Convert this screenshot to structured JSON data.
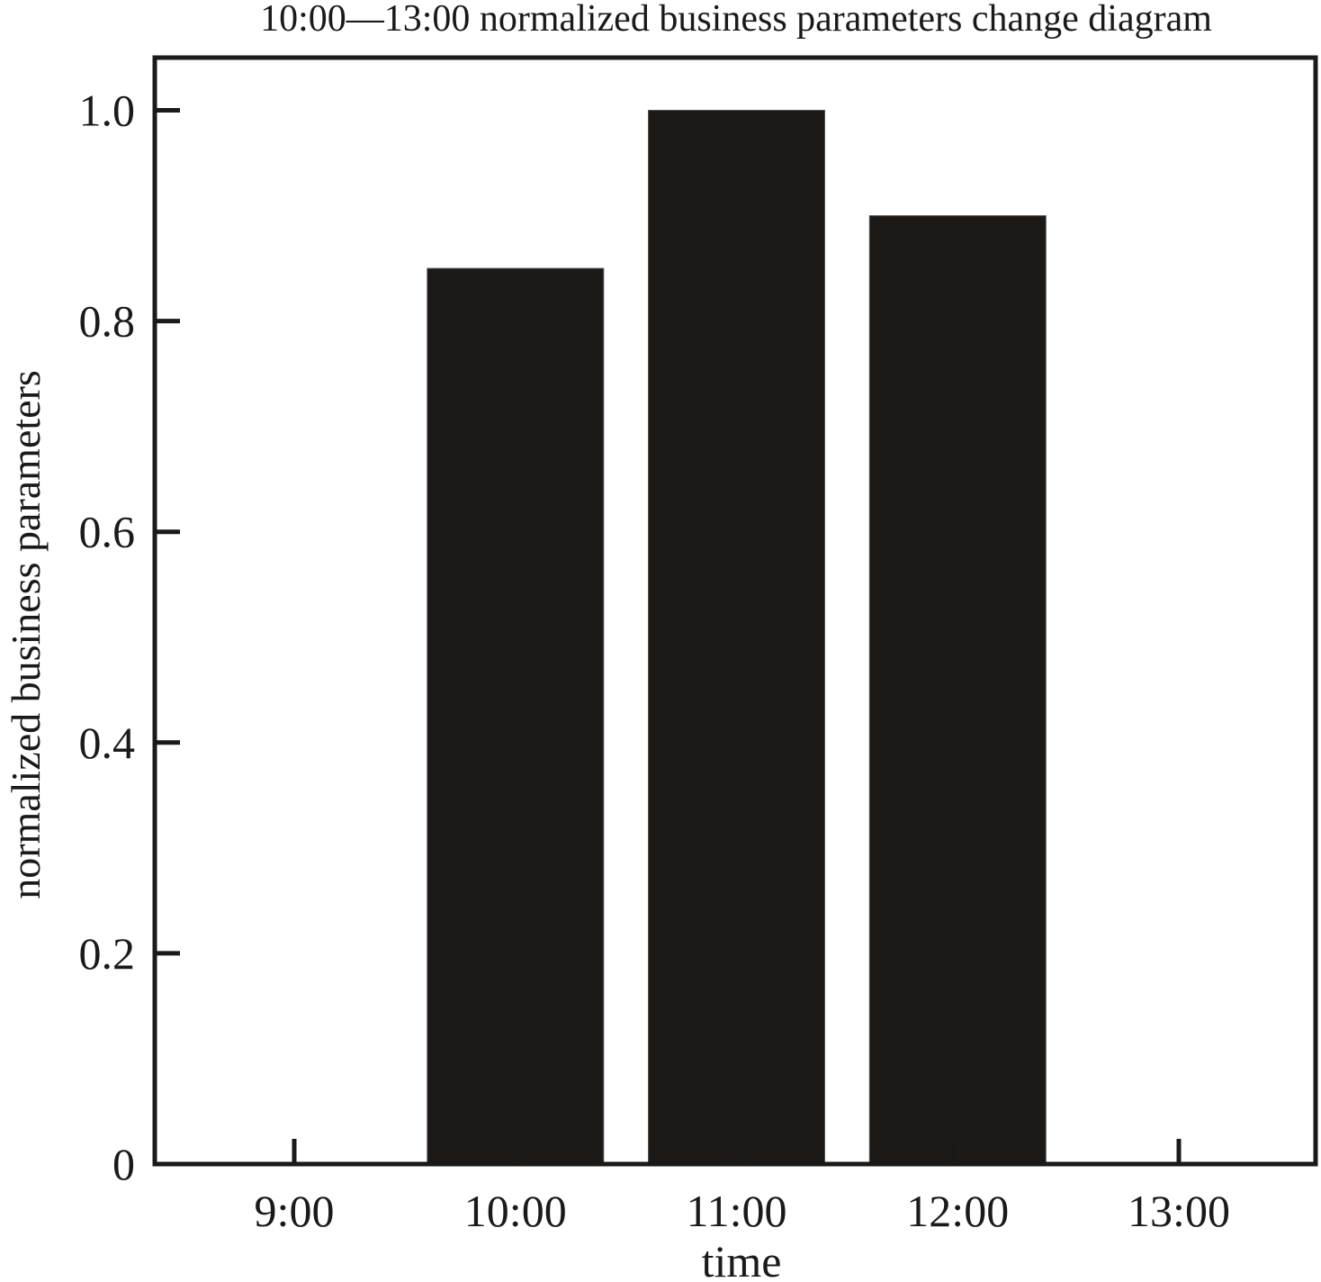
{
  "chart_data": {
    "type": "bar",
    "title": "10:00—13:00 normalized business parameters change diagram",
    "xlabel": "time",
    "ylabel": "normalized business parameters",
    "categories": [
      "9:00",
      "10:00",
      "11:00",
      "12:00",
      "13:00"
    ],
    "values": [
      0,
      0.85,
      1.0,
      0.9,
      0
    ],
    "ylim": [
      0,
      1.05
    ],
    "yticks": [
      0,
      0.2,
      0.4,
      0.6,
      0.8,
      1.0
    ],
    "ytick_labels": [
      "0",
      "0.2",
      "0.4",
      "0.6",
      "0.8",
      "1.0"
    ],
    "grid": false,
    "bar_color": "#1c1816"
  }
}
